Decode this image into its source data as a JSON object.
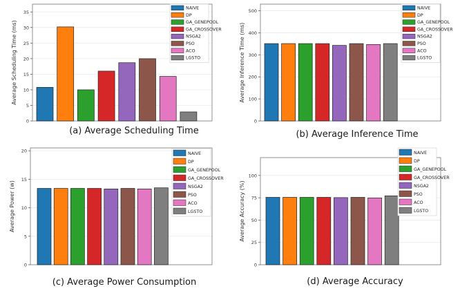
{
  "legend_entries": [
    "NAIVE",
    "DP",
    "GA_GENEPOOL",
    "GA_CROSSOVER",
    "NSGA2",
    "PSO",
    "ACO",
    "LGSTO"
  ],
  "colors": [
    "#1f77b4",
    "#ff7f0e",
    "#2ca02c",
    "#d62728",
    "#9467bd",
    "#8c564b",
    "#e377c2",
    "#7f7f7f"
  ],
  "chart_data": [
    {
      "type": "bar",
      "caption": "(a)  Average Scheduling Time",
      "ylabel": "Average Scheduling Time (ms)",
      "categories": [
        "NAIVE",
        "DP",
        "GA_GENEPOOL",
        "GA_CROSSOVER",
        "NSGA2",
        "PSO",
        "ACO",
        "LGSTO"
      ],
      "values": [
        10.8,
        30.2,
        10.0,
        16.0,
        18.7,
        20.0,
        14.3,
        2.9
      ],
      "ylim": [
        0,
        37.5
      ],
      "yticks": [
        0,
        5,
        10,
        15,
        20,
        25,
        30,
        35
      ],
      "grid": true,
      "legend": "top-right"
    },
    {
      "type": "bar",
      "caption": "(b) Average Inference Time",
      "ylabel": "Average Inference Time (ms)",
      "categories": [
        "NAIVE",
        "DP",
        "GA_GENEPOOL",
        "GA_CROSSOVER",
        "NSGA2",
        "PSO",
        "ACO",
        "LGSTO"
      ],
      "values": [
        351,
        351,
        351,
        351,
        343,
        351,
        347,
        351
      ],
      "ylim": [
        0,
        530
      ],
      "yticks": [
        0,
        100,
        200,
        300,
        400,
        500
      ],
      "grid": true,
      "legend": "top-right"
    },
    {
      "type": "bar",
      "caption": "(c) Average Power Consumption",
      "ylabel": "Average Power (w)",
      "categories": [
        "NAIVE",
        "DP",
        "GA_GENEPOOL",
        "GA_CROSSOVER",
        "NSGA2",
        "PSO",
        "ACO",
        "LGSTO"
      ],
      "values": [
        13.4,
        13.4,
        13.4,
        13.4,
        13.3,
        13.4,
        13.3,
        13.5
      ],
      "ylim": [
        0,
        20.5
      ],
      "yticks": [
        0,
        5,
        10,
        15,
        20
      ],
      "grid": true,
      "legend": "top-right"
    },
    {
      "type": "bar",
      "caption": "(d) Average Accuracy",
      "ylabel": "Average Accuracy (%)",
      "categories": [
        "NAIVE",
        "DP",
        "GA_GENEPOOL",
        "GA_CROSSOVER",
        "NSGA2",
        "PSO",
        "ACO",
        "LGSTO"
      ],
      "values": [
        75.5,
        75.5,
        75.5,
        75.5,
        75.2,
        75.5,
        74.8,
        77.2
      ],
      "ylim": [
        0,
        120
      ],
      "yticks": [
        0,
        25,
        50,
        75,
        100
      ],
      "grid": true,
      "legend": "top-right"
    }
  ]
}
